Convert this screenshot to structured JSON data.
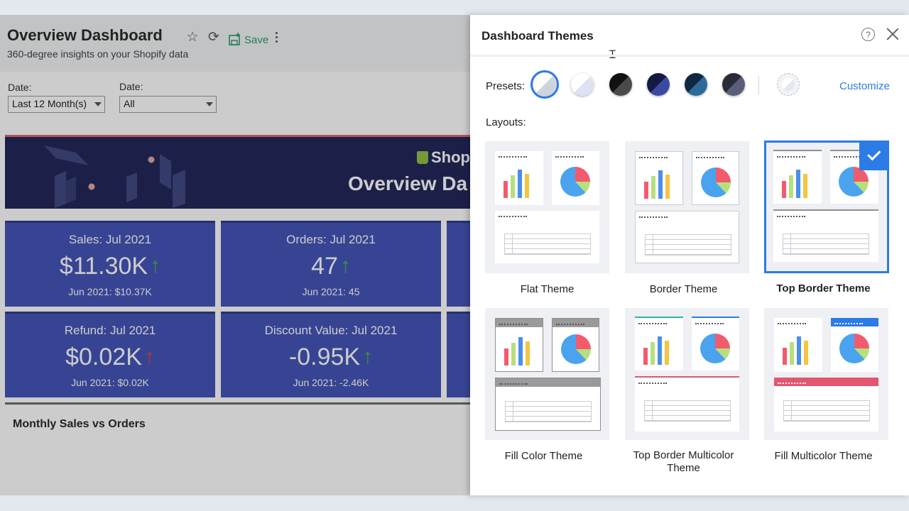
{
  "dashboard": {
    "title": "Overview Dashboard",
    "subtitle": "360-degree insights on your Shopify data",
    "save_label": "Save",
    "filters": [
      {
        "label": "Date:",
        "value": "Last 12 Month(s)"
      },
      {
        "label": "Date:",
        "value": "All"
      }
    ],
    "banner": {
      "brand": "Shop",
      "title": "Overview Da"
    },
    "kpis": [
      {
        "title": "Sales: Jul 2021",
        "value": "$11.30K",
        "trend": "up",
        "compare": "Jun 2021: $10.37K"
      },
      {
        "title": "Orders: Jul 2021",
        "value": "47",
        "trend": "up",
        "compare": "Jun 2021: 45"
      },
      {
        "title": "Refund: Jul 2021",
        "value": "$0.02K",
        "trend": "up-bad",
        "compare": "Jun 2021: $0.02K"
      },
      {
        "title": "Discount Value: Jul 2021",
        "value": "-0.95K",
        "trend": "up",
        "compare": "Jun 2021: -2.46K"
      }
    ],
    "chart_title": "Monthly Sales vs Orders"
  },
  "themes_panel": {
    "title": "Dashboard Themes",
    "help_icon": "?",
    "presets_label": "Presets:",
    "presets": [
      {
        "name": "light-blue",
        "selected": true,
        "colors": [
          "#ffffff",
          "#cfd3dc"
        ]
      },
      {
        "name": "lavender",
        "selected": false,
        "colors": [
          "#ffffff",
          "#dfe2f3"
        ]
      },
      {
        "name": "black",
        "selected": false,
        "colors": [
          "#111111",
          "#4a4a4a"
        ]
      },
      {
        "name": "navy",
        "selected": false,
        "colors": [
          "#151a45",
          "#3a4aa0"
        ]
      },
      {
        "name": "dark-teal",
        "selected": false,
        "colors": [
          "#0f2740",
          "#2d6a9a"
        ]
      },
      {
        "name": "slate",
        "selected": false,
        "colors": [
          "#2a2c3a",
          "#5b5e78"
        ]
      }
    ],
    "customize_label": "Customize",
    "layouts_label": "Layouts:",
    "layouts": [
      {
        "name": "Flat Theme",
        "selected": false
      },
      {
        "name": "Border Theme",
        "selected": false
      },
      {
        "name": "Top Border Theme",
        "selected": true
      },
      {
        "name": "Fill Color Theme",
        "selected": false
      },
      {
        "name": "Top Border Multicolor Theme",
        "selected": false
      },
      {
        "name": "Fill Multicolor Theme",
        "selected": false
      }
    ]
  },
  "colors": {
    "accent": "#2d7be5",
    "kpi_fill": "#4556b8",
    "trend_up": "#45b74a",
    "trend_bad": "#e0483e",
    "save_green": "#2e9e6e"
  }
}
